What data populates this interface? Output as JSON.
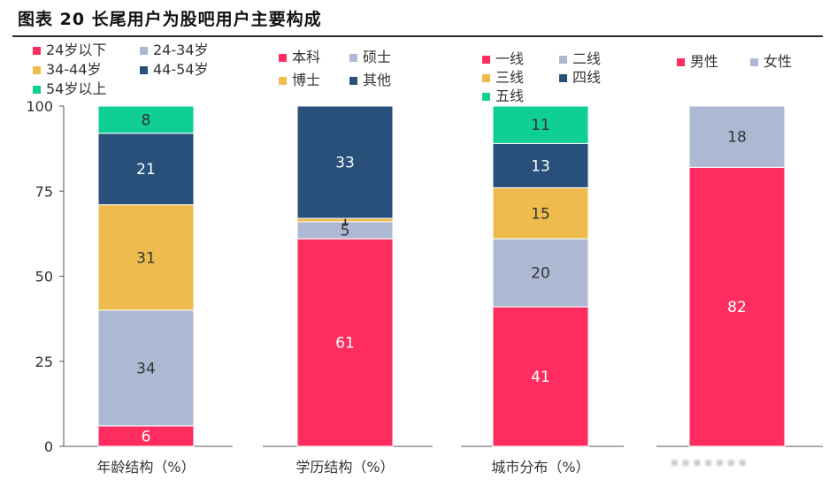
{
  "title": "图表 20 长尾用户为股吧用户主要构成",
  "colors": {
    "red": "#FF2D5F",
    "lightblue": "#ADB9D2",
    "yellow": "#EDBB4E",
    "navy": "#28507A",
    "teal": "#0FCF94"
  },
  "chart_data": {
    "type": "bar",
    "stacked": true,
    "ylim": [
      0,
      100
    ],
    "yticks": [
      0,
      25,
      50,
      75,
      100
    ],
    "groups": [
      {
        "category": "年龄结构（%）",
        "legend": [
          {
            "label": "24岁以下",
            "color": "red"
          },
          {
            "label": "24-34岁",
            "color": "lightblue"
          },
          {
            "label": "34-44岁",
            "color": "yellow"
          },
          {
            "label": "44-54岁",
            "color": "navy"
          },
          {
            "label": "54岁以上",
            "color": "teal"
          }
        ],
        "segments": [
          {
            "name": "24岁以下",
            "value": 6,
            "color": "red"
          },
          {
            "name": "24-34岁",
            "value": 34,
            "color": "lightblue"
          },
          {
            "name": "34-44岁",
            "value": 31,
            "color": "yellow"
          },
          {
            "name": "44-54岁",
            "value": 21,
            "color": "navy"
          },
          {
            "name": "54岁以上",
            "value": 8,
            "color": "teal"
          }
        ]
      },
      {
        "category": "学历结构（%）",
        "legend": [
          {
            "label": "本科",
            "color": "red"
          },
          {
            "label": "硕士",
            "color": "lightblue"
          },
          {
            "label": "博士",
            "color": "yellow"
          },
          {
            "label": "其他",
            "color": "navy"
          }
        ],
        "segments": [
          {
            "name": "本科",
            "value": 61,
            "color": "red"
          },
          {
            "name": "硕士",
            "value": 5,
            "color": "lightblue"
          },
          {
            "name": "博士",
            "value": 1,
            "color": "yellow"
          },
          {
            "name": "其他",
            "value": 33,
            "color": "navy"
          }
        ]
      },
      {
        "category": "城市分布（%）",
        "legend": [
          {
            "label": "一线",
            "color": "red"
          },
          {
            "label": "二线",
            "color": "lightblue"
          },
          {
            "label": "三线",
            "color": "yellow"
          },
          {
            "label": "四线",
            "color": "navy"
          },
          {
            "label": "五线",
            "color": "teal"
          }
        ],
        "segments": [
          {
            "name": "一线",
            "value": 41,
            "color": "red"
          },
          {
            "name": "二线",
            "value": 20,
            "color": "lightblue"
          },
          {
            "name": "三线",
            "value": 15,
            "color": "yellow"
          },
          {
            "name": "四线",
            "value": 13,
            "color": "navy"
          },
          {
            "name": "五线",
            "value": 11,
            "color": "teal"
          }
        ]
      },
      {
        "category": "",
        "legend": [
          {
            "label": "男性",
            "color": "red"
          },
          {
            "label": "女性",
            "color": "lightblue"
          }
        ],
        "segments": [
          {
            "name": "男性",
            "value": 82,
            "color": "red"
          },
          {
            "name": "女性",
            "value": 18,
            "color": "lightblue"
          }
        ]
      }
    ]
  }
}
